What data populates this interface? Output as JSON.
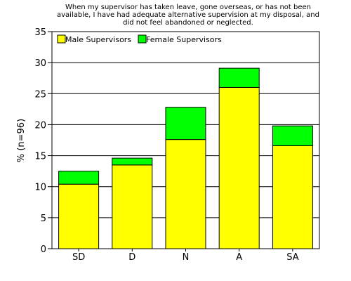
{
  "chart_data": {
    "type": "bar",
    "stacked": true,
    "title_lines": [
      "When my supervisor has taken leave, gone overseas, or has not been",
      "available, I have had adequate alternative supervision at my disposal, and",
      "did not feel abandoned or neglected."
    ],
    "ylabel": "% (n=96)",
    "xlabel": "",
    "categories": [
      "SD",
      "D",
      "N",
      "A",
      "SA"
    ],
    "series": [
      {
        "name": "Male Supervisors",
        "color": "#ffff00",
        "values": [
          10.4,
          13.5,
          17.6,
          26.0,
          16.6
        ]
      },
      {
        "name": "Female Supervisors",
        "color": "#00ff00",
        "values": [
          2.1,
          1.1,
          5.2,
          3.1,
          3.2
        ]
      }
    ],
    "ylim": [
      0,
      35
    ],
    "yticks": [
      0,
      5,
      10,
      15,
      20,
      25,
      30,
      35
    ],
    "grid": true,
    "legend_position": "top-left"
  }
}
